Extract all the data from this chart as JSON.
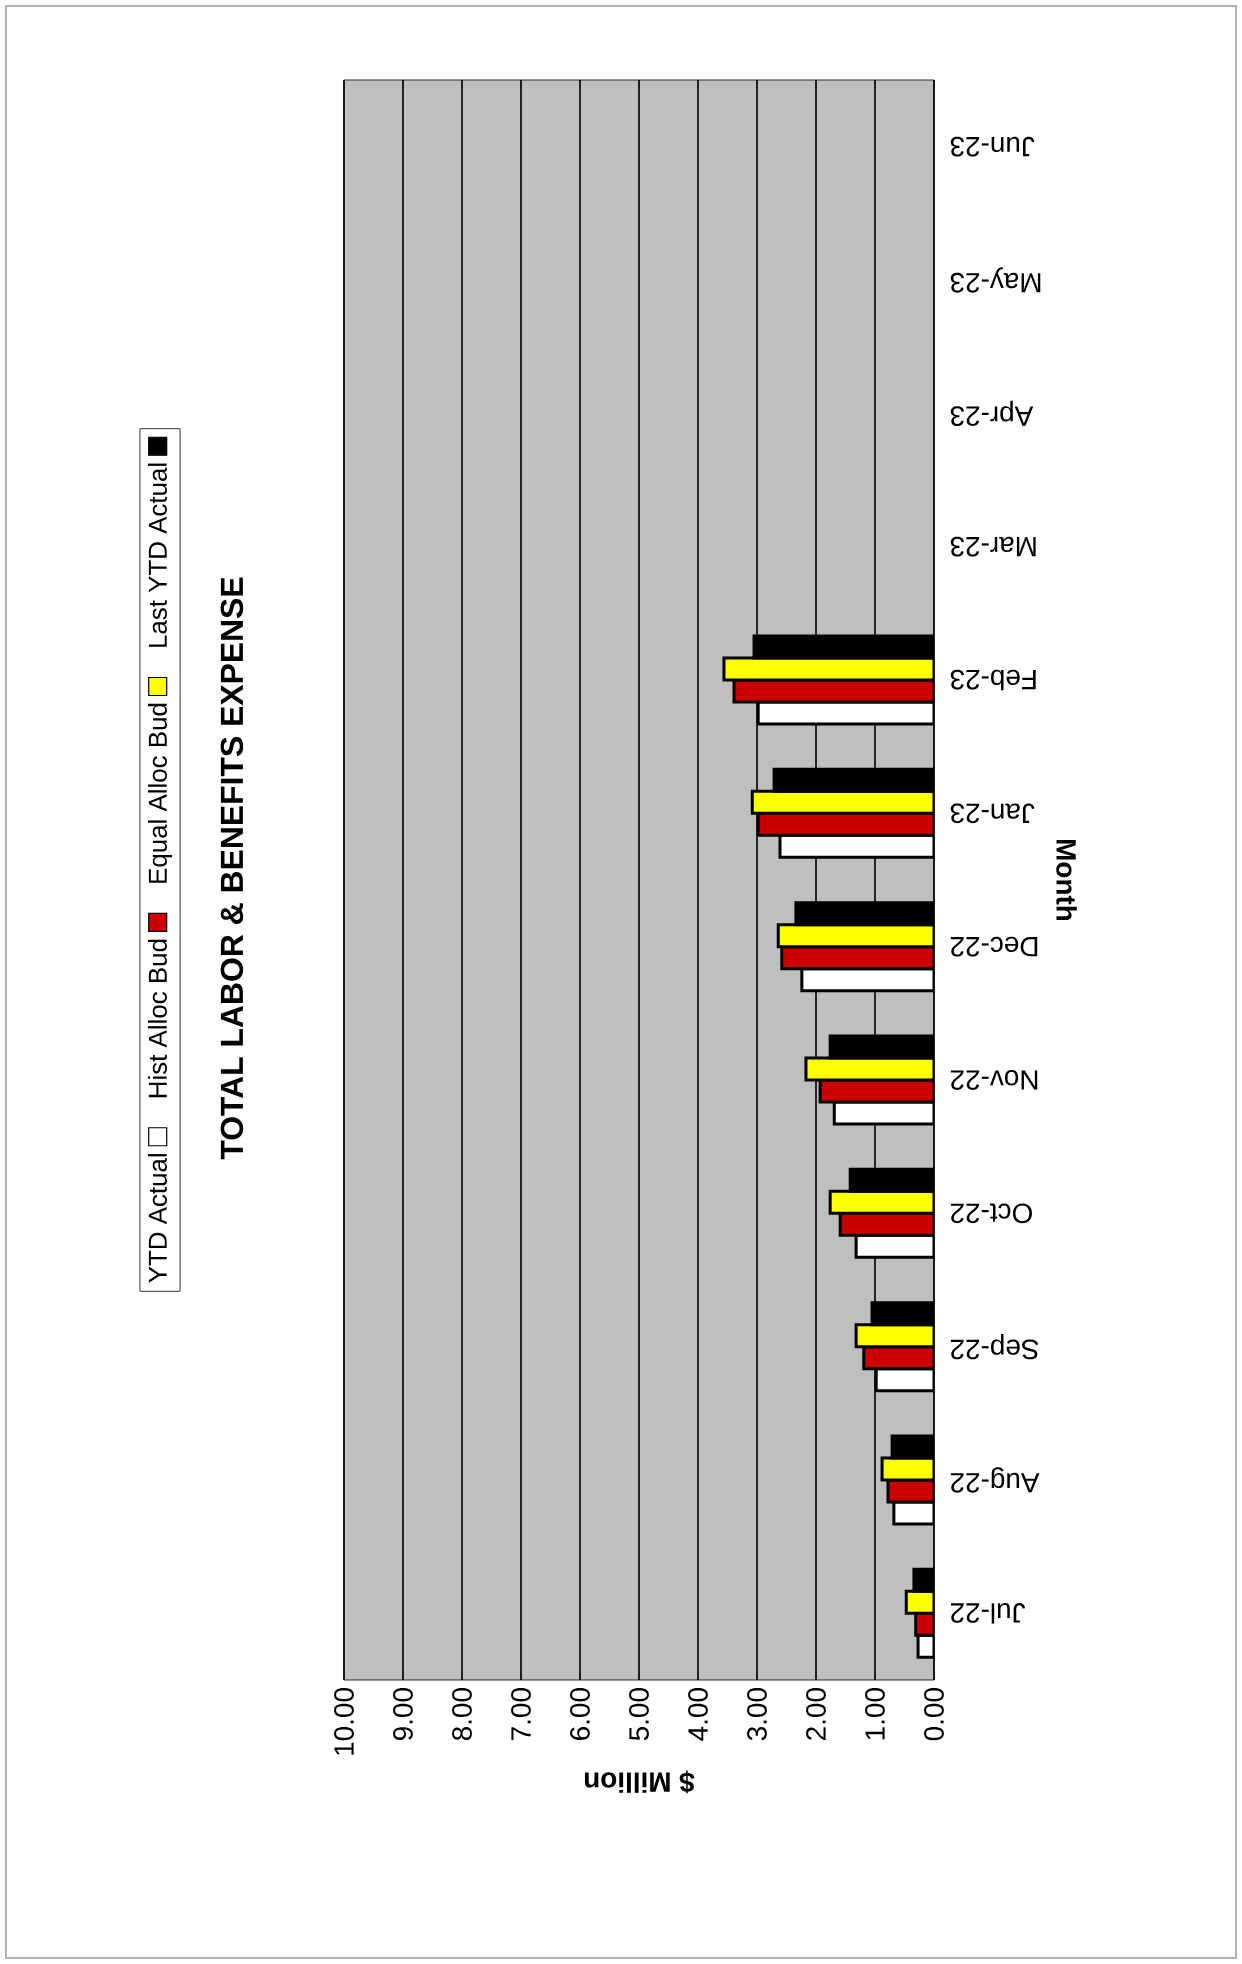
{
  "chart_data": {
    "type": "bar",
    "orientation": "horizontal",
    "title": "TOTAL LABOR & BENEFITS EXPENSE",
    "xlabel": "$ Million",
    "ylabel": "Month",
    "categories": [
      "Jun-23",
      "May-23",
      "Apr-23",
      "Mar-23",
      "Feb-23",
      "Jan-23",
      "Dec-22",
      "Nov-22",
      "Oct-22",
      "Sep-22",
      "Aug-22",
      "Jul-22"
    ],
    "series": [
      {
        "name": "YTD Actual",
        "color": "#ffffff",
        "values": [
          null,
          null,
          null,
          null,
          2.98,
          2.61,
          2.24,
          1.69,
          1.32,
          0.98,
          0.68,
          0.27
        ]
      },
      {
        "name": "Hist Alloc Bud",
        "color": "#cc0000",
        "values": [
          null,
          null,
          null,
          null,
          3.39,
          2.98,
          2.58,
          1.93,
          1.59,
          1.19,
          0.78,
          0.31
        ]
      },
      {
        "name": "Equal Alloc Bud",
        "color": "#ffff00",
        "values": [
          null,
          null,
          null,
          null,
          3.56,
          3.08,
          2.64,
          2.17,
          1.76,
          1.32,
          0.88,
          0.47
        ]
      },
      {
        "name": "Last YTD Actual",
        "color": "#000000",
        "values": [
          null,
          null,
          null,
          null,
          3.05,
          2.71,
          2.34,
          1.76,
          1.42,
          1.05,
          0.71,
          0.34
        ]
      }
    ],
    "xlim": [
      10,
      0
    ],
    "xticks": [
      {
        "value": 0,
        "label": "0.00"
      },
      {
        "value": 1,
        "label": "1.00"
      },
      {
        "value": 2,
        "label": "2.00"
      },
      {
        "value": 3,
        "label": "3.00"
      },
      {
        "value": 4,
        "label": "4.00"
      },
      {
        "value": 5,
        "label": "5.00"
      },
      {
        "value": 6,
        "label": "6.00"
      },
      {
        "value": 7,
        "label": "7.00"
      },
      {
        "value": 8,
        "label": "8.00"
      },
      {
        "value": 9,
        "label": "9.00"
      },
      {
        "value": 10,
        "label": "10.00"
      }
    ],
    "grid": "x",
    "legend": "left"
  }
}
